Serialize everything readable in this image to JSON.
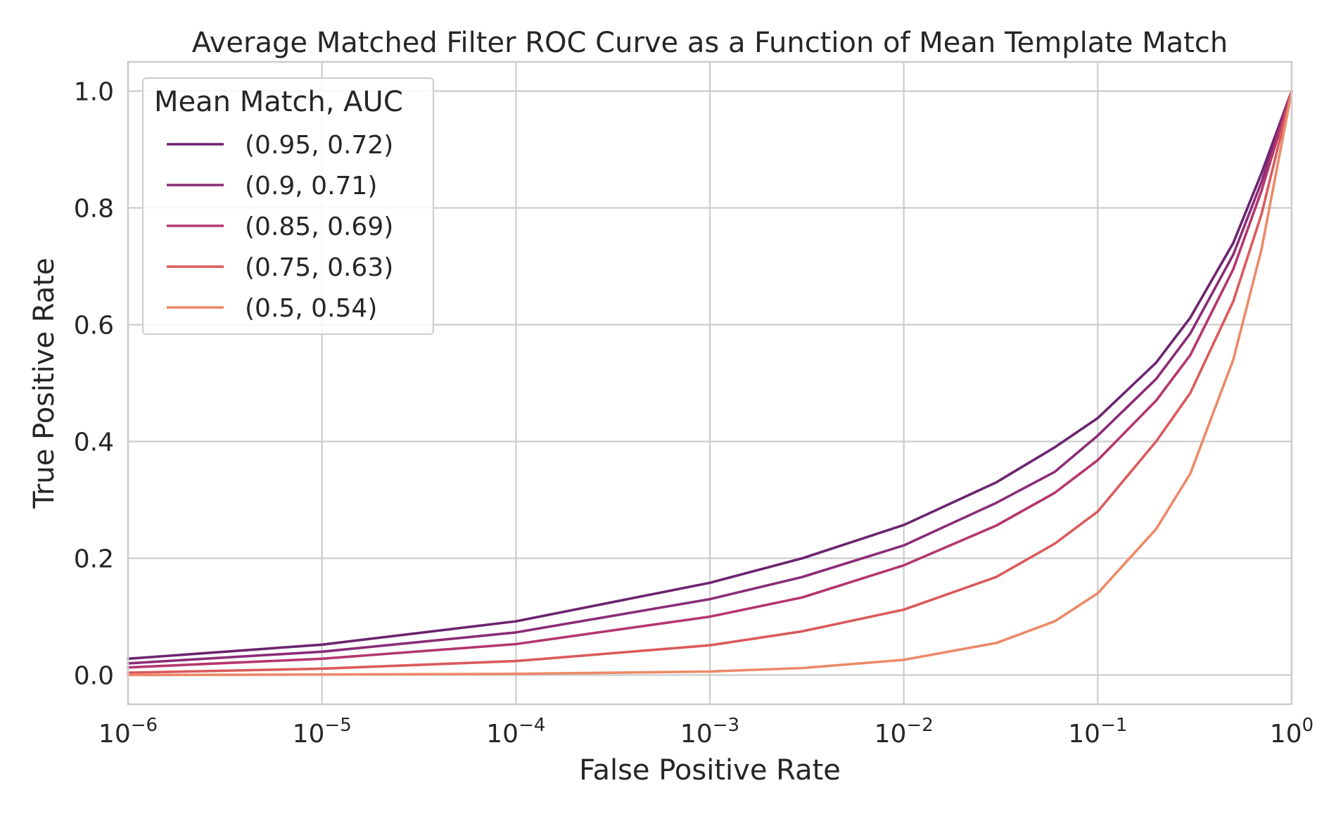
{
  "chart_data": {
    "type": "line",
    "title": "Average Matched Filter ROC Curve as a Function of Mean Template Match",
    "xlabel": "False Positive Rate",
    "ylabel": "True Positive Rate",
    "xscale": "log",
    "xlim": [
      1e-06,
      1
    ],
    "ylim": [
      -0.05,
      1.05
    ],
    "grid": true,
    "x_ticks": [
      {
        "value": 1e-06,
        "base": "10",
        "exp": "−6"
      },
      {
        "value": 1e-05,
        "base": "10",
        "exp": "−5"
      },
      {
        "value": 0.0001,
        "base": "10",
        "exp": "−4"
      },
      {
        "value": 0.001,
        "base": "10",
        "exp": "−3"
      },
      {
        "value": 0.01,
        "base": "10",
        "exp": "−2"
      },
      {
        "value": 0.1,
        "base": "10",
        "exp": "−1"
      },
      {
        "value": 1,
        "base": "10",
        "exp": "0"
      }
    ],
    "y_ticks": [
      {
        "value": 0.0,
        "label": "0.0"
      },
      {
        "value": 0.2,
        "label": "0.2"
      },
      {
        "value": 0.4,
        "label": "0.4"
      },
      {
        "value": 0.6,
        "label": "0.6"
      },
      {
        "value": 0.8,
        "label": "0.8"
      },
      {
        "value": 1.0,
        "label": "1.0"
      }
    ],
    "legend": {
      "title": "Mean Match, AUC",
      "position": "upper-left"
    },
    "x": [
      1e-06,
      1e-05,
      0.0001,
      0.001,
      0.003,
      0.01,
      0.03,
      0.06,
      0.1,
      0.2,
      0.3,
      0.5,
      0.7,
      1
    ],
    "series": [
      {
        "name": "(0.95, 0.72)",
        "color": "#6b2470",
        "values": [
          0.028,
          0.052,
          0.092,
          0.158,
          0.2,
          0.257,
          0.33,
          0.39,
          0.44,
          0.535,
          0.612,
          0.74,
          0.86,
          1.0
        ]
      },
      {
        "name": "(0.9, 0.71)",
        "color": "#8b2c77",
        "values": [
          0.02,
          0.04,
          0.073,
          0.13,
          0.168,
          0.222,
          0.295,
          0.348,
          0.41,
          0.507,
          0.585,
          0.72,
          0.845,
          1.0
        ]
      },
      {
        "name": "(0.85, 0.69)",
        "color": "#b5366d",
        "values": [
          0.013,
          0.028,
          0.053,
          0.1,
          0.133,
          0.188,
          0.256,
          0.312,
          0.368,
          0.47,
          0.548,
          0.695,
          0.83,
          1.0
        ]
      },
      {
        "name": "(0.75, 0.63)",
        "color": "#db5a5c",
        "values": [
          0.004,
          0.011,
          0.024,
          0.051,
          0.075,
          0.112,
          0.168,
          0.225,
          0.28,
          0.4,
          0.483,
          0.64,
          0.79,
          1.0
        ]
      },
      {
        "name": "(0.5, 0.54)",
        "color": "#ec8968",
        "values": [
          0.0,
          0.001,
          0.002,
          0.006,
          0.012,
          0.026,
          0.055,
          0.092,
          0.14,
          0.25,
          0.345,
          0.54,
          0.73,
          1.0
        ]
      }
    ]
  }
}
